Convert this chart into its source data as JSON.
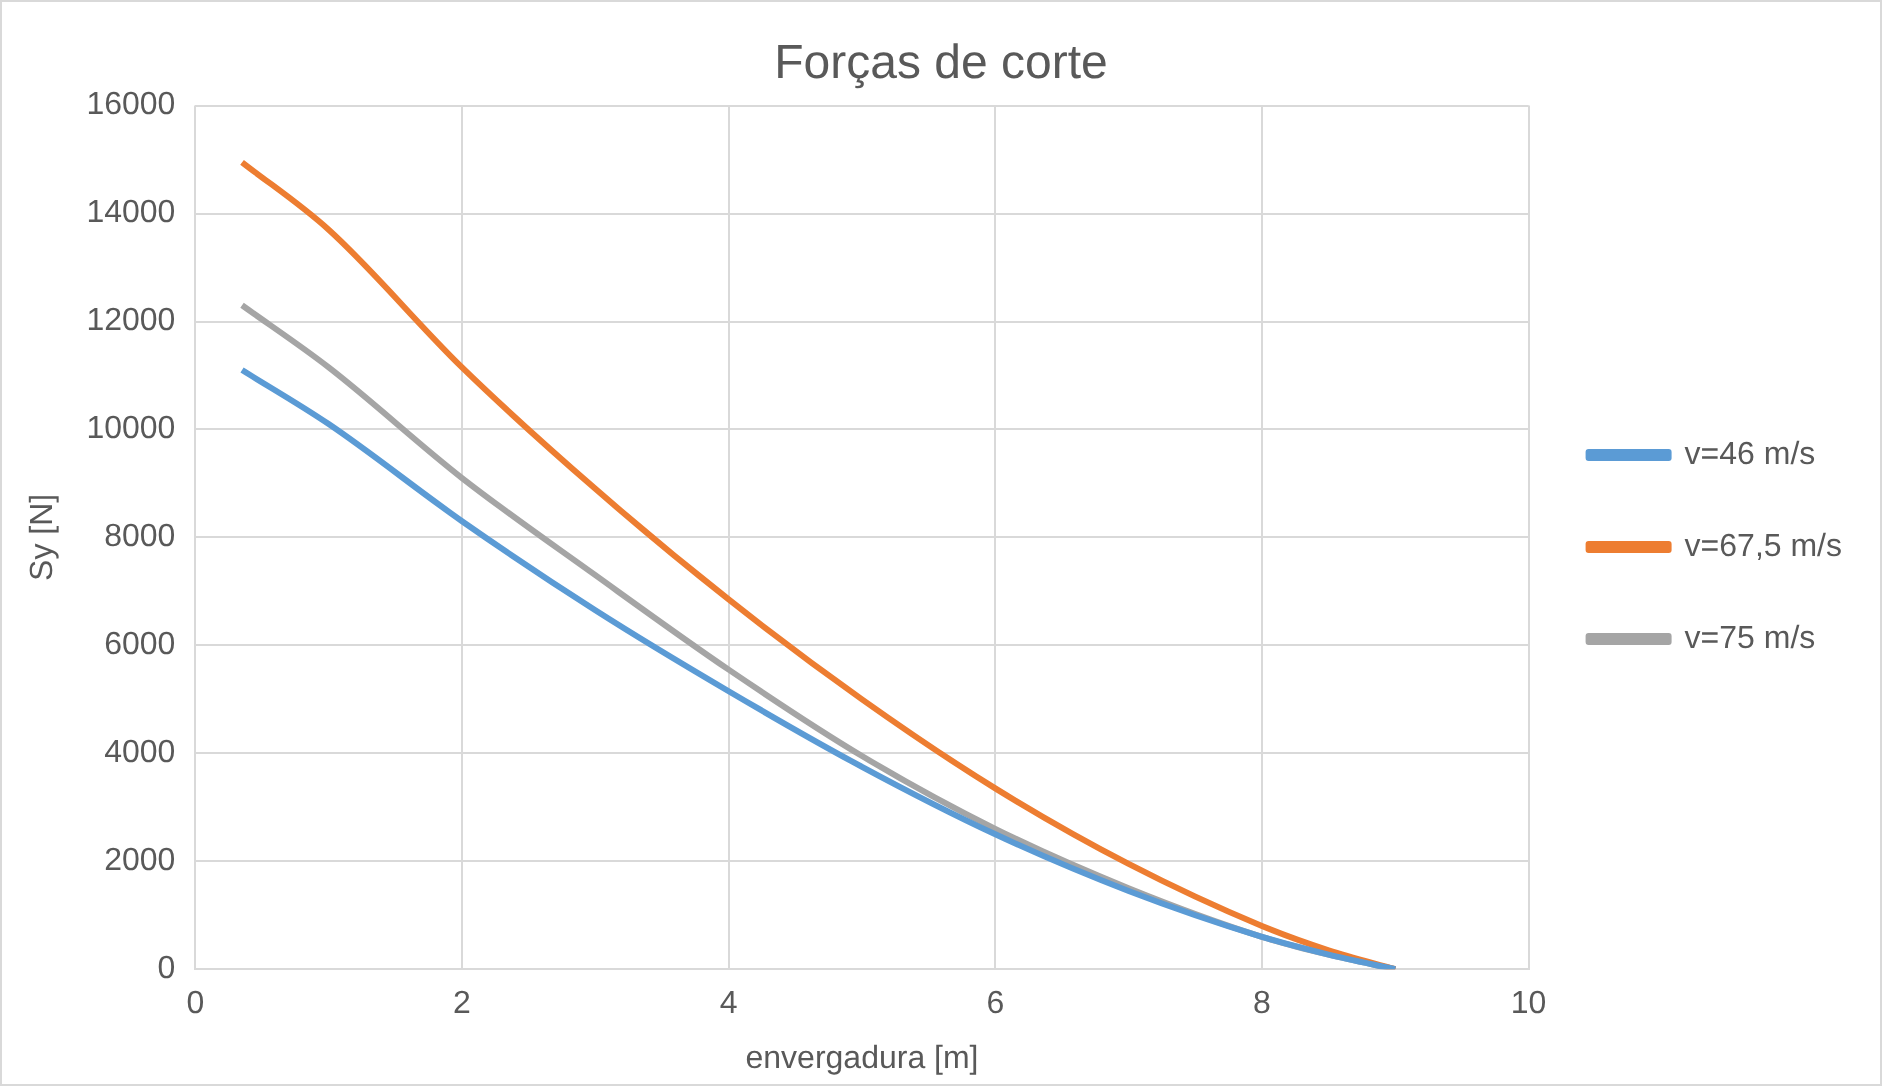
{
  "chart_data": {
    "type": "line",
    "title": "Forças de corte",
    "xlabel": "envergadura [m]",
    "ylabel": "Sy [N]",
    "xlim": [
      0,
      10
    ],
    "xticks": [
      0,
      2,
      4,
      6,
      8,
      10
    ],
    "ylim": [
      0,
      16000
    ],
    "yticks": [
      0,
      2000,
      4000,
      6000,
      8000,
      10000,
      12000,
      14000,
      16000
    ],
    "x": [
      0.35,
      1,
      2,
      3,
      4,
      5,
      6,
      7,
      8,
      8.5,
      9
    ],
    "series": [
      {
        "name": "v=46 m/s",
        "color": "#5b9bd5",
        "values": [
          11100,
          10100,
          8300,
          6650,
          5150,
          3750,
          2500,
          1450,
          600,
          270,
          0
        ]
      },
      {
        "name": "v=67,5 m/s",
        "color": "#ed7d31",
        "values": [
          14950,
          13700,
          11150,
          8900,
          6850,
          5000,
          3350,
          1950,
          800,
          350,
          0
        ]
      },
      {
        "name": "v=75 m/s",
        "color": "#a5a5a5",
        "values": [
          12300,
          11150,
          9100,
          7300,
          5550,
          3950,
          2600,
          1500,
          600,
          270,
          0
        ]
      }
    ],
    "grid": true,
    "legend": "right",
    "marker": "none",
    "line_style": "solid"
  }
}
